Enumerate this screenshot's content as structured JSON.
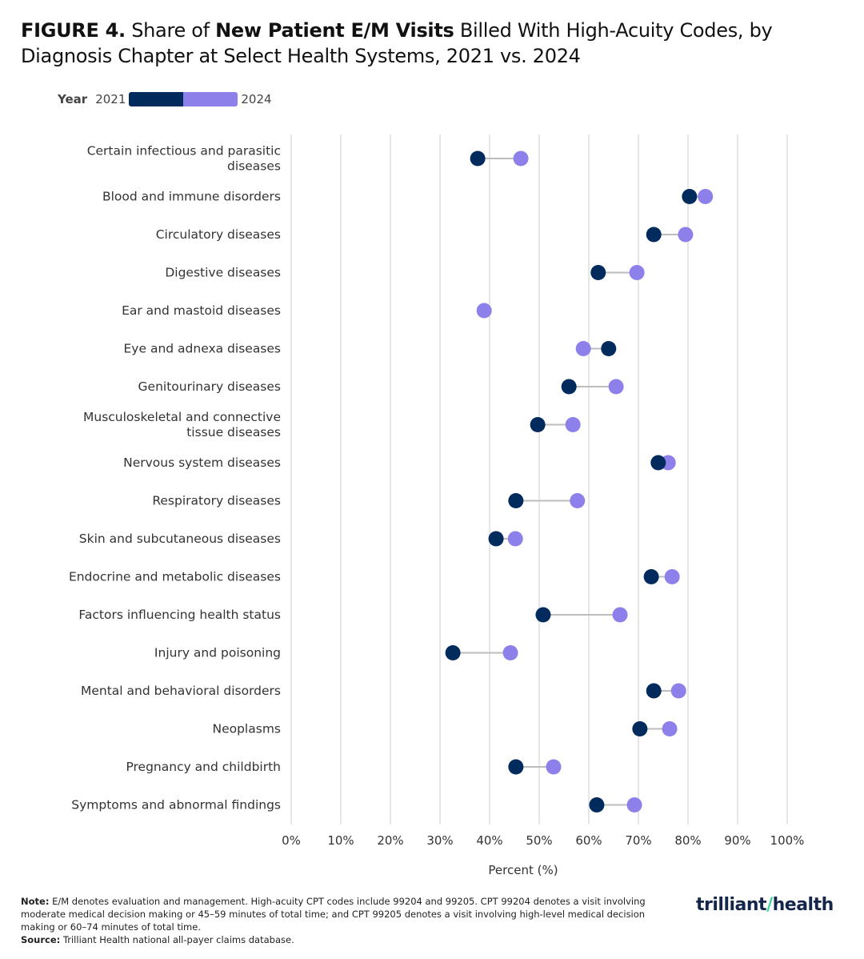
{
  "title_parts": {
    "prefix": "FIGURE 4.",
    "pre": " Share of ",
    "bold": "New Patient E/M Visits",
    "post": " Billed With High-Acuity Codes, by Diagnosis Chapter at Select Health Systems, 2021 vs. 2024"
  },
  "legend": {
    "title": "Year",
    "items": [
      "2021",
      "2024"
    ]
  },
  "colors": {
    "y2021": "#012b5d",
    "y2024": "#8d80ea",
    "connector": "#bdbdbd",
    "grid": "#e6e6e6"
  },
  "chart_data": {
    "type": "dumbbell",
    "xlabel": "Percent (%)",
    "xlim": [
      0,
      100
    ],
    "xticks": [
      "0%",
      "10%",
      "20%",
      "30%",
      "40%",
      "50%",
      "60%",
      "70%",
      "80%",
      "90%",
      "100%"
    ],
    "grid": "vertical",
    "legend_placement": "top-left",
    "categories": [
      "Certain infectious and parasitic diseases",
      "Blood and immune disorders",
      "Circulatory diseases",
      "Digestive diseases",
      "Ear and mastoid diseases",
      "Eye and adnexa diseases",
      "Genitourinary diseases",
      "Musculoskeletal and connective tissue diseases",
      "Nervous system diseases",
      "Respiratory diseases",
      "Skin and subcutaneous diseases",
      "Endocrine and metabolic diseases",
      "Factors influencing health status",
      "Injury and poisoning",
      "Mental and behavioral disorders",
      "Neoplasms",
      "Pregnancy and childbirth",
      "Symptoms and abnormal findings"
    ],
    "series": [
      {
        "name": "2021",
        "values": [
          37.6,
          80.3,
          73.1,
          61.9,
          null,
          64.0,
          56.0,
          49.7,
          74.0,
          45.3,
          41.3,
          72.6,
          50.8,
          32.6,
          73.1,
          70.3,
          45.3,
          61.6
        ]
      },
      {
        "name": "2024",
        "values": [
          46.3,
          83.5,
          79.5,
          69.7,
          38.9,
          58.9,
          65.5,
          56.8,
          76.0,
          57.7,
          45.2,
          76.8,
          66.3,
          44.2,
          78.1,
          76.3,
          52.9,
          69.2
        ]
      }
    ]
  },
  "notes": {
    "note_label": "Note:",
    "note_text": " E/M denotes evaluation and management. High-acuity CPT codes include 99204 and 99205. CPT 99204 denotes a visit involving moderate medical decision making or 45–59 minutes of total time; and CPT 99205 denotes a visit involving high-level medical decision making or 60–74 minutes of total time.",
    "source_label": "Source:",
    "source_text": " Trilliant Health national all-payer claims database."
  },
  "logo": "trilliant health"
}
